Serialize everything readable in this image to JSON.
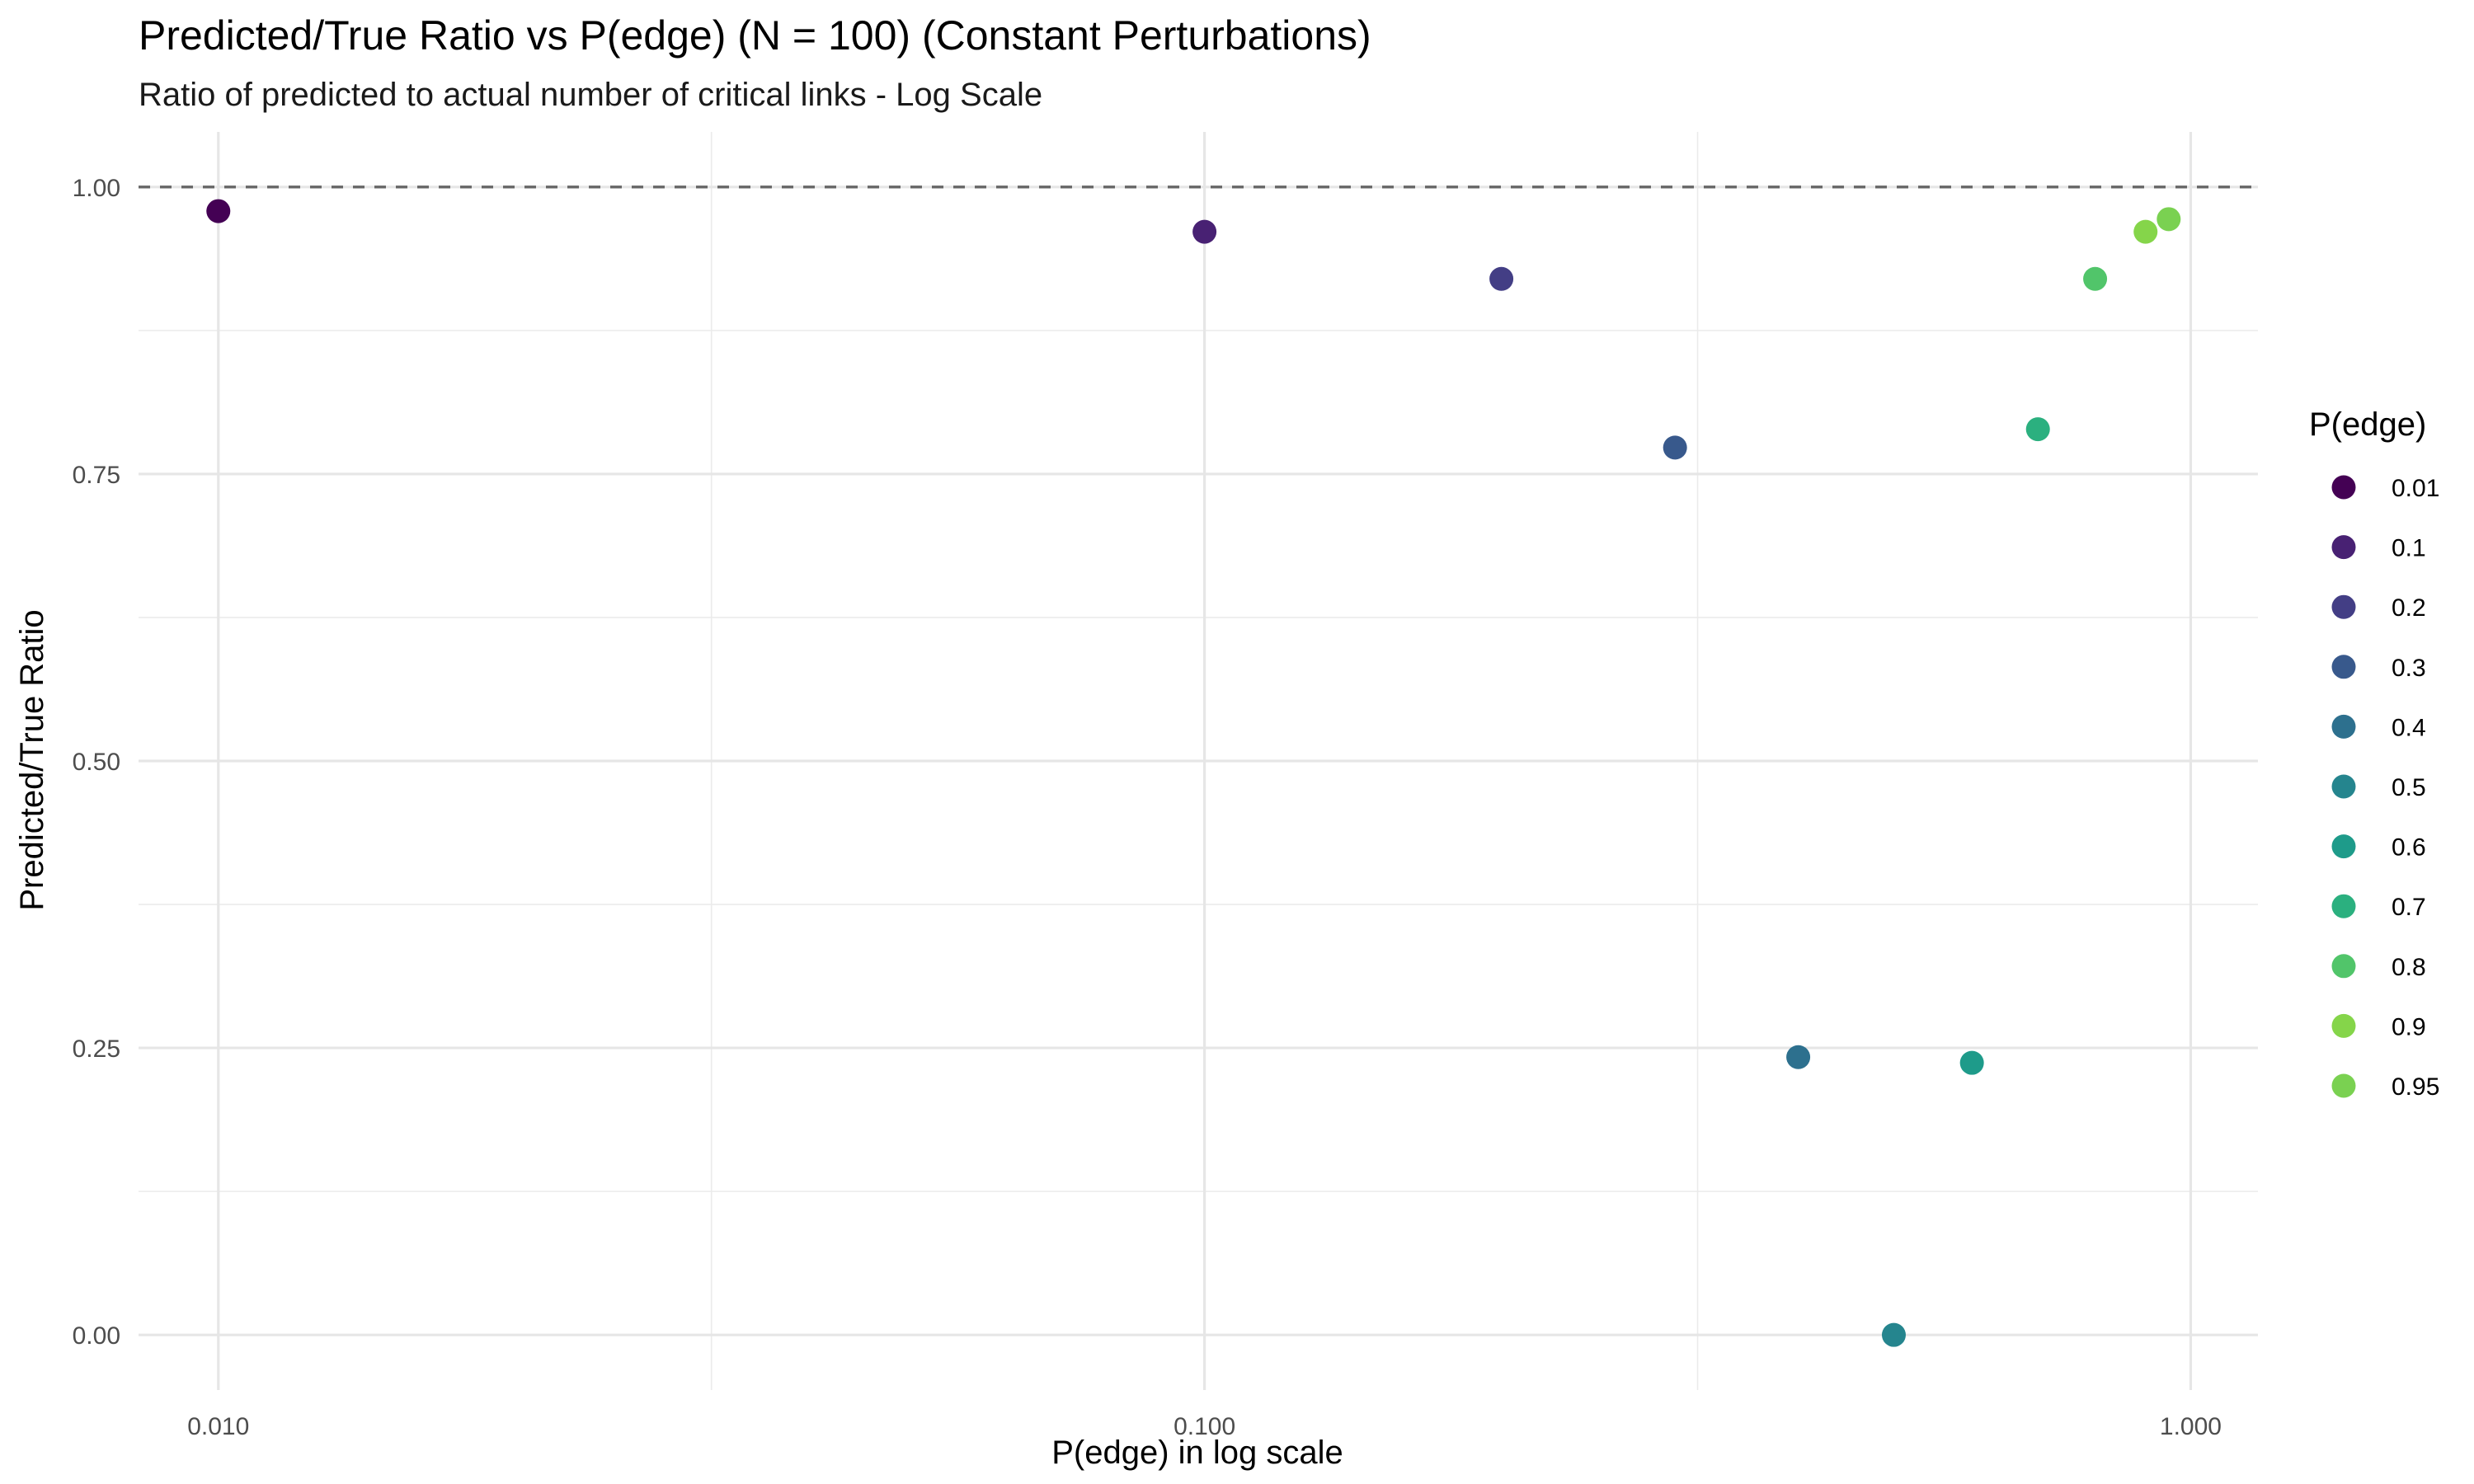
{
  "chart_data": {
    "type": "scatter",
    "title": "Predicted/True Ratio vs P(edge) (N = 100) (Constant Perturbations)",
    "subtitle": "Ratio of predicted to actual number of critical links - Log Scale",
    "xlabel": "P(edge) in log scale",
    "ylabel": "Predicted/True Ratio",
    "x_scale": "log10",
    "xlim": [
      0.0083,
      1.17
    ],
    "ylim": [
      -0.048,
      1.048
    ],
    "x_ticks": [
      0.01,
      0.1,
      1.0
    ],
    "x_tick_labels": [
      "0.010",
      "0.100",
      "1.000"
    ],
    "y_ticks": [
      0.0,
      0.25,
      0.5,
      0.75,
      1.0
    ],
    "y_tick_labels": [
      "0.00",
      "0.25",
      "0.50",
      "0.75",
      "1.00"
    ],
    "grid": true,
    "reference_line": {
      "y": 1.0,
      "style": "dashed",
      "color": "#666666"
    },
    "legend": {
      "title": "P(edge)",
      "placement": "right",
      "entries": [
        {
          "label": "0.01",
          "color": "#440154"
        },
        {
          "label": "0.1",
          "color": "#482173"
        },
        {
          "label": "0.2",
          "color": "#433E85"
        },
        {
          "label": "0.3",
          "color": "#38598C"
        },
        {
          "label": "0.4",
          "color": "#2D708E"
        },
        {
          "label": "0.5",
          "color": "#25858E"
        },
        {
          "label": "0.6",
          "color": "#1E9B8A"
        },
        {
          "label": "0.7",
          "color": "#2BB07F"
        },
        {
          "label": "0.8",
          "color": "#51C56A"
        },
        {
          "label": "0.9",
          "color": "#85D54A"
        },
        {
          "label": "0.95",
          "color": "#7AD151"
        }
      ]
    },
    "points": [
      {
        "x": 0.01,
        "y": 0.979,
        "color": "#440154"
      },
      {
        "x": 0.1,
        "y": 0.961,
        "color": "#482173"
      },
      {
        "x": 0.2,
        "y": 0.92,
        "color": "#433E85"
      },
      {
        "x": 0.3,
        "y": 0.773,
        "color": "#38598C"
      },
      {
        "x": 0.4,
        "y": 0.242,
        "color": "#2D708E"
      },
      {
        "x": 0.5,
        "y": 0.0,
        "color": "#25858E"
      },
      {
        "x": 0.6,
        "y": 0.237,
        "color": "#1E9B8A"
      },
      {
        "x": 0.7,
        "y": 0.789,
        "color": "#2BB07F"
      },
      {
        "x": 0.8,
        "y": 0.92,
        "color": "#51C56A"
      },
      {
        "x": 0.9,
        "y": 0.961,
        "color": "#85D54A"
      },
      {
        "x": 0.95,
        "y": 0.972,
        "color": "#7AD151"
      }
    ]
  }
}
